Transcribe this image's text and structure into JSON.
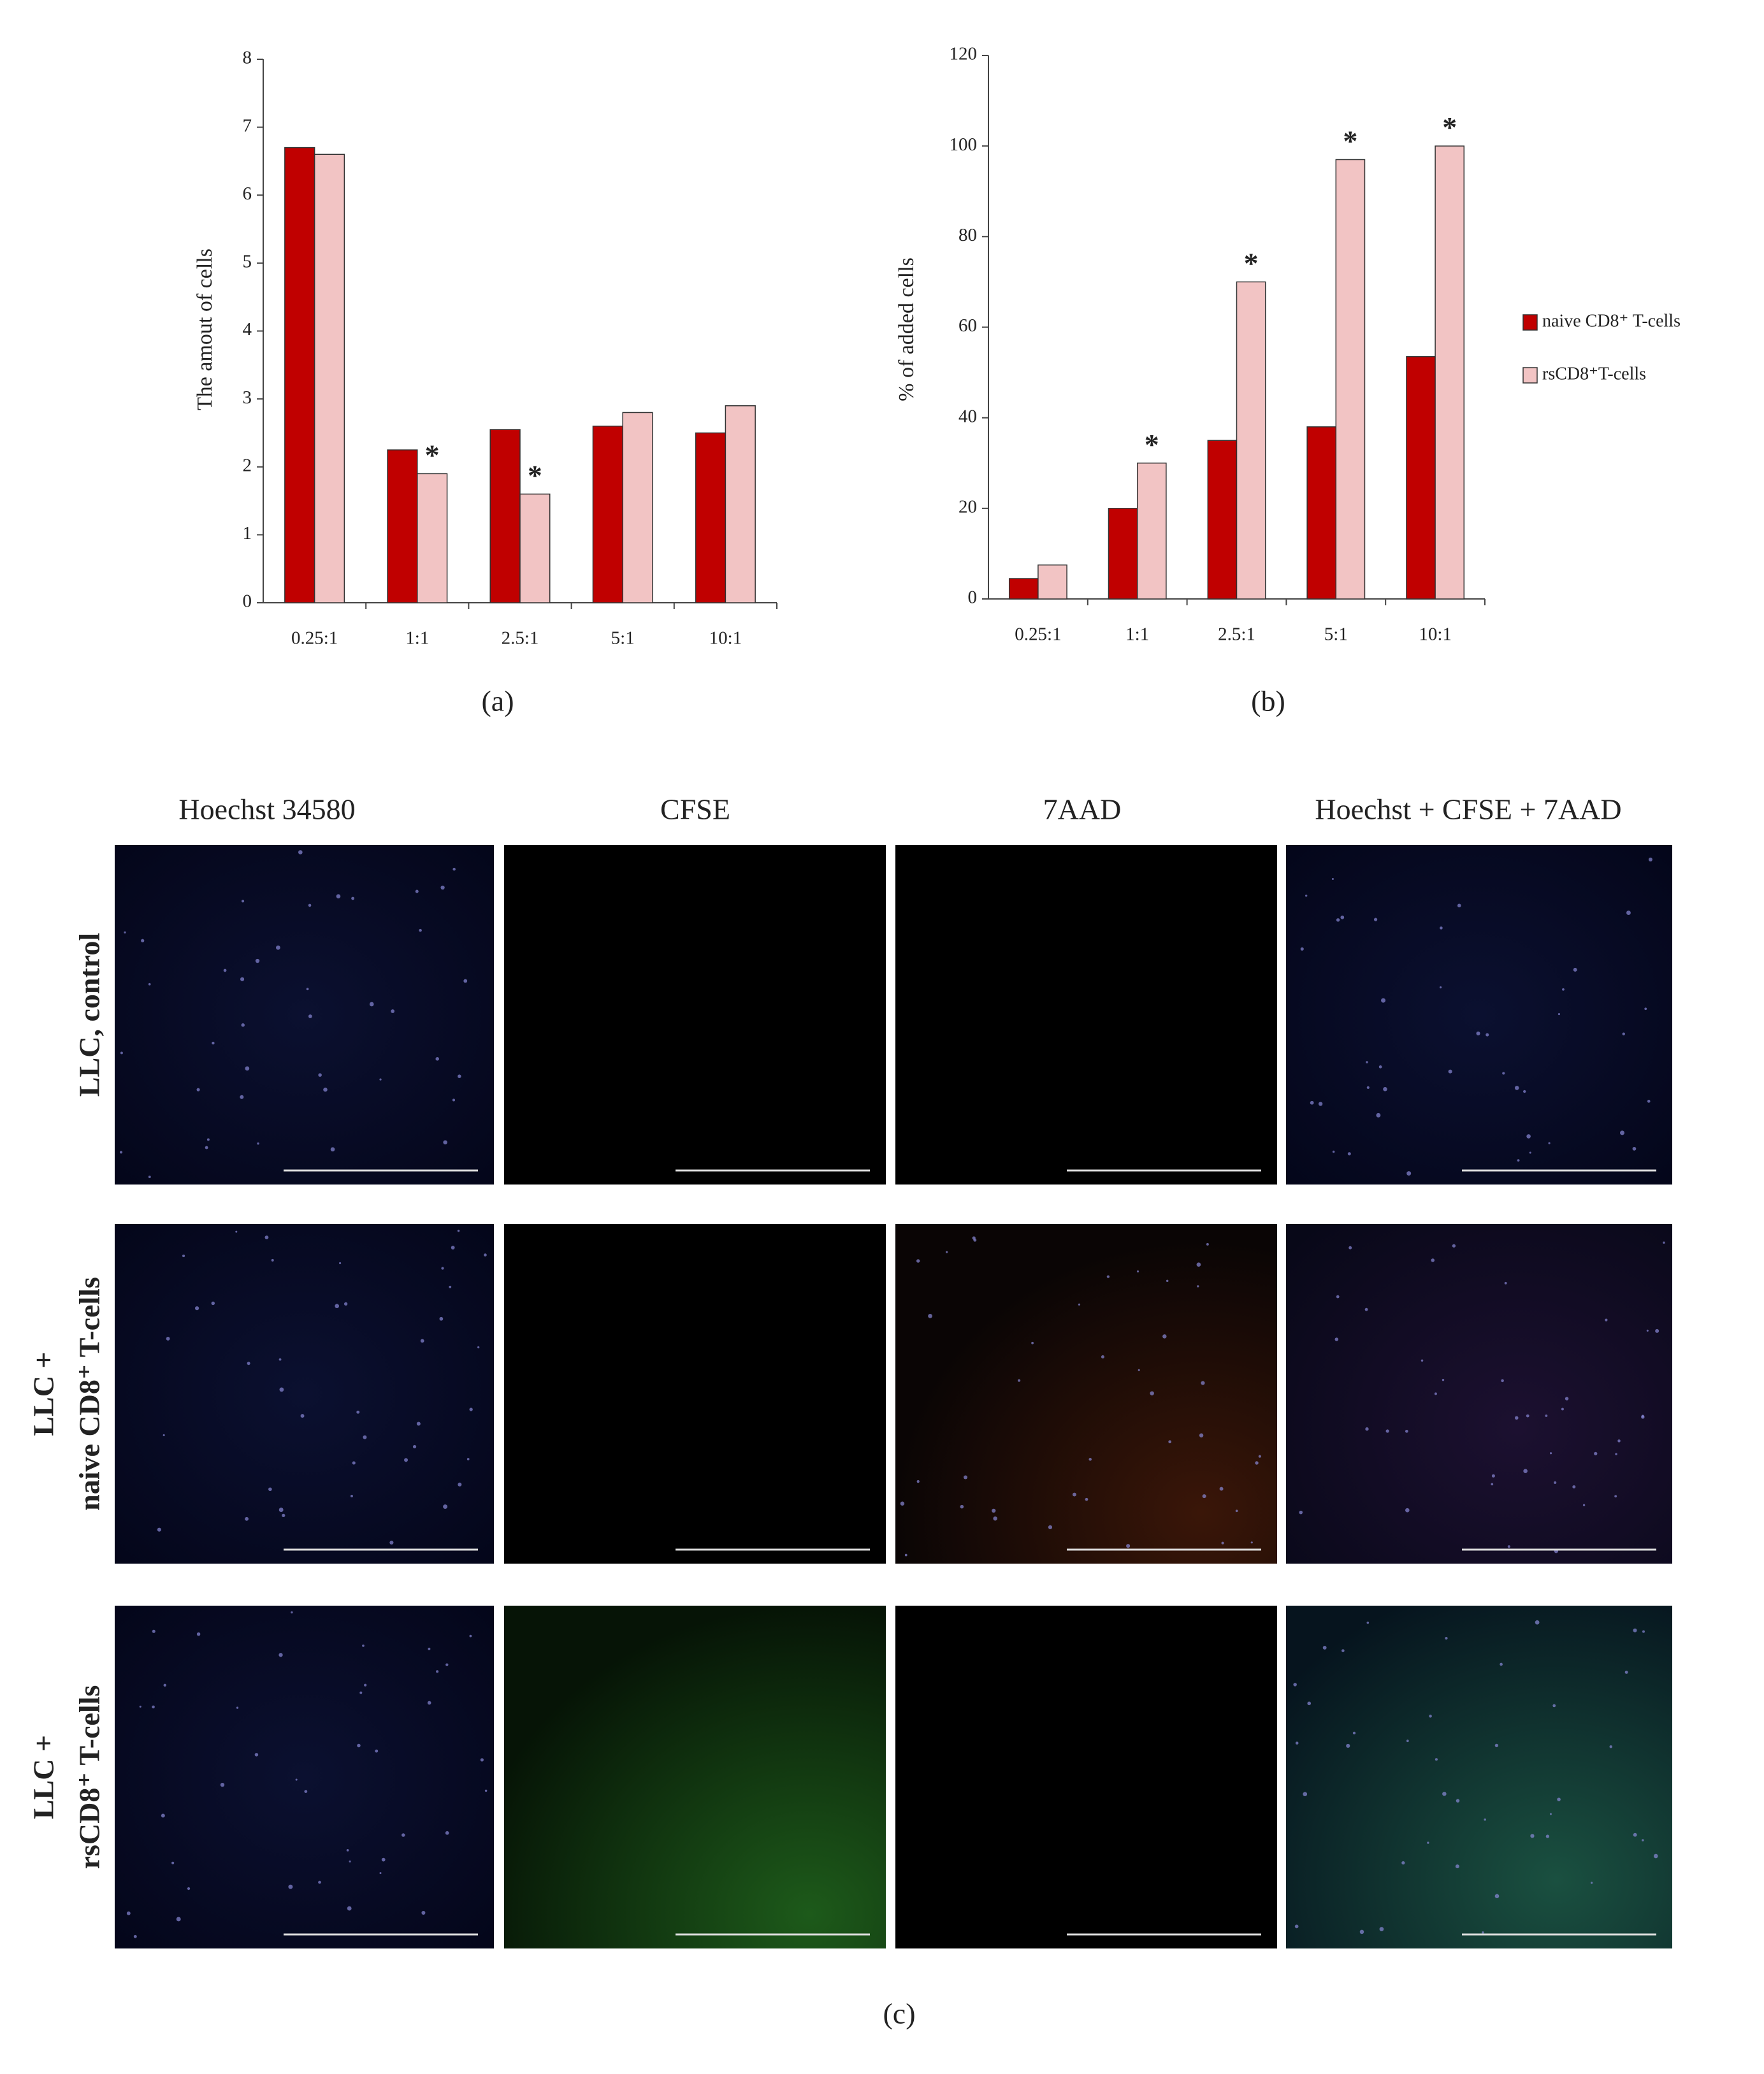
{
  "chart_data": [
    {
      "type": "bar",
      "ylabel": "The amout of cells",
      "categories": [
        "0.25:1",
        "1:1",
        "2.5:1",
        "5:1",
        "10:1"
      ],
      "series": [
        {
          "color": "#c00000",
          "values": [
            6.7,
            2.25,
            2.55,
            2.6,
            2.5
          ]
        },
        {
          "color": "#f2c4c4",
          "values": [
            6.6,
            1.9,
            1.6,
            2.8,
            2.9
          ],
          "annotations": [
            null,
            "*",
            "*",
            null,
            null
          ]
        }
      ],
      "ylim": [
        0,
        8
      ],
      "yticks": [
        0,
        1,
        2,
        3,
        4,
        5,
        6,
        7,
        8
      ]
    },
    {
      "type": "bar",
      "ylabel": "% of added cells",
      "categories": [
        "0.25:1",
        "1:1",
        "2.5:1",
        "5:1",
        "10:1"
      ],
      "series": [
        {
          "name": "naive CD8⁺ T-cells",
          "color": "#c00000",
          "values": [
            4.5,
            20,
            35,
            38,
            53.5
          ]
        },
        {
          "name": "rsCD8⁺T-cells",
          "color": "#f2c4c4",
          "values": [
            7.5,
            30,
            70,
            97,
            100
          ],
          "annotations": [
            null,
            "*",
            "*",
            "*",
            "*"
          ]
        }
      ],
      "ylim": [
        0,
        120
      ],
      "yticks": [
        0,
        20,
        40,
        60,
        80,
        100,
        120
      ]
    }
  ],
  "panel_labels": [
    "(a)",
    "(b)",
    "(c)"
  ],
  "microscopy": {
    "columns": [
      "Hoechst 34580",
      "CFSE",
      "7AAD",
      "Hoechst + CFSE + 7AAD"
    ],
    "rows": [
      [
        "LLC, control"
      ],
      [
        "LLC +",
        "naive CD8⁺ T-cells"
      ],
      [
        "LLC +",
        "rsCD8⁺ T-cells"
      ]
    ]
  }
}
